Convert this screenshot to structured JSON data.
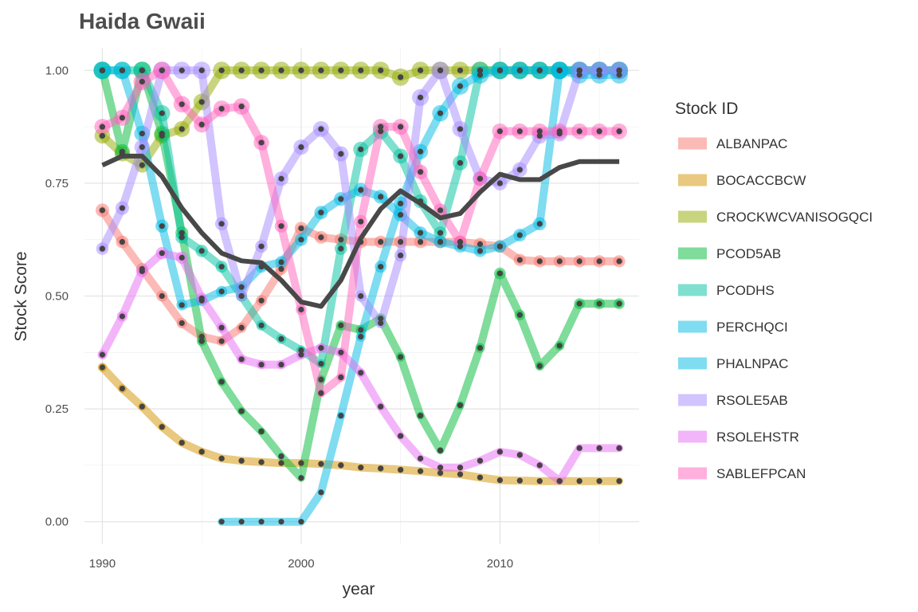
{
  "chart_data": {
    "type": "line",
    "title": "Haida Gwaii",
    "xlabel": "year",
    "ylabel": "Stock Score",
    "xlim": [
      1989.1,
      2017.0
    ],
    "ylim": [
      -0.05,
      1.05
    ],
    "x_ticks": [
      1990,
      2000,
      2010
    ],
    "x_tick_labels": [
      "1990",
      "2000",
      "2010"
    ],
    "y_ticks": [
      0,
      0.25,
      0.5,
      0.75,
      1
    ],
    "y_tick_labels": [
      "0.00",
      "0.25",
      "0.50",
      "0.75",
      "1.00"
    ],
    "grid": true,
    "legend_title": "Stock ID",
    "legend_position": "right",
    "series": [
      {
        "name": "ALBANPAC",
        "color": "#F8766D",
        "points": [
          [
            1990,
            0.69
          ],
          [
            1991,
            0.62
          ],
          [
            1992,
            0.56
          ],
          [
            1993,
            0.5
          ],
          [
            1994,
            0.44
          ],
          [
            1995,
            0.41
          ],
          [
            1996,
            0.4
          ],
          [
            1997,
            0.43
          ],
          [
            1998,
            0.49
          ],
          [
            1999,
            0.56
          ],
          [
            2000,
            0.65
          ],
          [
            2001,
            0.63
          ],
          [
            2002,
            0.625
          ],
          [
            2003,
            0.62
          ],
          [
            2004,
            0.62
          ],
          [
            2005,
            0.62
          ],
          [
            2006,
            0.62
          ],
          [
            2007,
            0.62
          ],
          [
            2008,
            0.62
          ],
          [
            2009,
            0.615
          ],
          [
            2010,
            0.61
          ],
          [
            2011,
            0.58
          ],
          [
            2012,
            0.577
          ],
          [
            2013,
            0.577
          ],
          [
            2014,
            0.577
          ],
          [
            2015,
            0.577
          ],
          [
            2016,
            0.577
          ]
        ]
      },
      {
        "name": "BOCACCBCW",
        "color": "#D39200",
        "points": [
          [
            1990,
            0.342
          ],
          [
            1991,
            0.295
          ],
          [
            1992,
            0.255
          ],
          [
            1993,
            0.21
          ],
          [
            1994,
            0.175
          ],
          [
            1995,
            0.155
          ],
          [
            1996,
            0.14
          ],
          [
            1997,
            0.135
          ],
          [
            1998,
            0.132
          ],
          [
            1999,
            0.13
          ],
          [
            2000,
            0.13
          ],
          [
            2001,
            0.128
          ],
          [
            2002,
            0.125
          ],
          [
            2003,
            0.12
          ],
          [
            2004,
            0.118
          ],
          [
            2005,
            0.115
          ],
          [
            2006,
            0.112
          ],
          [
            2007,
            0.108
          ],
          [
            2008,
            0.105
          ],
          [
            2009,
            0.098
          ],
          [
            2010,
            0.092
          ],
          [
            2011,
            0.091
          ],
          [
            2012,
            0.09
          ],
          [
            2013,
            0.09
          ],
          [
            2014,
            0.09
          ],
          [
            2015,
            0.09
          ],
          [
            2016,
            0.09
          ]
        ]
      },
      {
        "name": "CROCKWCVANISOGQCI",
        "color": "#93AA00",
        "points": [
          [
            1990,
            0.855
          ],
          [
            1991,
            0.815
          ],
          [
            1992,
            0.79
          ],
          [
            1993,
            0.855
          ],
          [
            1994,
            0.87
          ],
          [
            1995,
            0.93
          ],
          [
            1996,
            1.0
          ],
          [
            1997,
            1.0
          ],
          [
            1998,
            1.0
          ],
          [
            1999,
            1.0
          ],
          [
            2000,
            1.0
          ],
          [
            2001,
            1.0
          ],
          [
            2002,
            1.0
          ],
          [
            2003,
            1.0
          ],
          [
            2004,
            1.0
          ],
          [
            2005,
            0.985
          ],
          [
            2006,
            1.0
          ],
          [
            2007,
            1.0
          ],
          [
            2008,
            1.0
          ],
          [
            2009,
            1.0
          ],
          [
            2010,
            1.0
          ],
          [
            2011,
            1.0
          ],
          [
            2012,
            1.0
          ],
          [
            2013,
            1.0
          ],
          [
            2014,
            1.0
          ],
          [
            2015,
            1.0
          ],
          [
            2016,
            1.0
          ]
        ]
      },
      {
        "name": "PCOD5AB",
        "color": "#00BA38",
        "points": [
          [
            1990,
            1.0
          ],
          [
            1991,
            0.82
          ],
          [
            1992,
            1.0
          ],
          [
            1993,
            0.86
          ],
          [
            1994,
            0.64
          ],
          [
            1995,
            0.4
          ],
          [
            1996,
            0.31
          ],
          [
            1997,
            0.245
          ],
          [
            1998,
            0.2
          ],
          [
            1999,
            0.145
          ],
          [
            2000,
            0.097
          ],
          [
            2001,
            0.315
          ],
          [
            2002,
            0.435
          ],
          [
            2003,
            0.425
          ],
          [
            2004,
            0.45
          ],
          [
            2005,
            0.365
          ],
          [
            2006,
            0.235
          ],
          [
            2007,
            0.158
          ],
          [
            2008,
            0.258
          ],
          [
            2009,
            0.385
          ],
          [
            2010,
            0.55
          ],
          [
            2011,
            0.458
          ],
          [
            2012,
            0.345
          ],
          [
            2013,
            0.39
          ],
          [
            2014,
            0.483
          ],
          [
            2015,
            0.483
          ],
          [
            2016,
            0.483
          ]
        ]
      },
      {
        "name": "PCODHS",
        "color": "#00C19F",
        "points": [
          [
            1990,
            1.0
          ],
          [
            1991,
            1.0
          ],
          [
            1992,
            1.0
          ],
          [
            1993,
            0.905
          ],
          [
            1994,
            0.63
          ],
          [
            1995,
            0.6
          ],
          [
            1996,
            0.565
          ],
          [
            1997,
            0.5
          ],
          [
            1998,
            0.435
          ],
          [
            1999,
            0.405
          ],
          [
            2000,
            0.38
          ],
          [
            2001,
            0.35
          ],
          [
            2002,
            0.605
          ],
          [
            2003,
            0.825
          ],
          [
            2004,
            0.865
          ],
          [
            2005,
            0.81
          ],
          [
            2006,
            0.71
          ],
          [
            2007,
            0.64
          ],
          [
            2008,
            0.795
          ],
          [
            2009,
            1.0
          ],
          [
            2010,
            1.0
          ],
          [
            2011,
            1.0
          ],
          [
            2012,
            1.0
          ],
          [
            2013,
            1.0
          ],
          [
            2014,
            1.0
          ],
          [
            2015,
            1.0
          ],
          [
            2016,
            1.0
          ]
        ]
      },
      {
        "name": "PERCHQCI",
        "color": "#00B9E3",
        "points": [
          [
            1990,
            1.0
          ],
          [
            1991,
            1.0
          ],
          [
            1992,
            0.86
          ],
          [
            1993,
            0.655
          ],
          [
            1994,
            0.48
          ],
          [
            1995,
            0.49
          ],
          [
            1996,
            0.51
          ],
          [
            1997,
            0.52
          ],
          [
            1998,
            0.565
          ],
          [
            1999,
            0.575
          ],
          [
            2000,
            0.625
          ],
          [
            2001,
            0.685
          ],
          [
            2002,
            0.715
          ],
          [
            2003,
            0.735
          ],
          [
            2004,
            0.72
          ],
          [
            2005,
            0.68
          ],
          [
            2006,
            0.64
          ],
          [
            2007,
            0.62
          ],
          [
            2008,
            0.61
          ],
          [
            2009,
            0.6
          ],
          [
            2010,
            0.61
          ],
          [
            2011,
            0.635
          ],
          [
            2012,
            0.66
          ],
          [
            2013,
            1.0
          ],
          [
            2014,
            1.0
          ],
          [
            2015,
            1.0
          ],
          [
            2016,
            1.0
          ]
        ]
      },
      {
        "name": "PHALNPAC",
        "color": "#00B9E3",
        "points": [
          [
            1996,
            0.0
          ],
          [
            1997,
            0.0
          ],
          [
            1998,
            0.0
          ],
          [
            1999,
            0.0
          ],
          [
            2000,
            0.0
          ],
          [
            2001,
            0.065
          ],
          [
            2002,
            0.235
          ],
          [
            2003,
            0.41
          ],
          [
            2004,
            0.565
          ],
          [
            2005,
            0.705
          ],
          [
            2006,
            0.82
          ],
          [
            2007,
            0.905
          ],
          [
            2008,
            0.965
          ],
          [
            2009,
            0.99
          ],
          [
            2010,
            1.0
          ],
          [
            2011,
            1.0
          ],
          [
            2012,
            1.0
          ],
          [
            2013,
            1.0
          ],
          [
            2014,
            0.99
          ],
          [
            2015,
            0.99
          ],
          [
            2016,
            0.99
          ]
        ]
      },
      {
        "name": "RSOLE5AB",
        "color": "#A58AFF",
        "points": [
          [
            1990,
            0.605
          ],
          [
            1991,
            0.695
          ],
          [
            1992,
            0.83
          ],
          [
            1993,
            1.0
          ],
          [
            1994,
            1.0
          ],
          [
            1995,
            1.0
          ],
          [
            1996,
            0.66
          ],
          [
            1997,
            0.5
          ],
          [
            1998,
            0.61
          ],
          [
            1999,
            0.76
          ],
          [
            2000,
            0.83
          ],
          [
            2001,
            0.87
          ],
          [
            2002,
            0.815
          ],
          [
            2003,
            0.5
          ],
          [
            2004,
            0.44
          ],
          [
            2005,
            0.59
          ],
          [
            2006,
            0.94
          ],
          [
            2007,
            1.0
          ],
          [
            2008,
            0.87
          ],
          [
            2009,
            0.76
          ],
          [
            2010,
            0.75
          ],
          [
            2011,
            0.78
          ],
          [
            2012,
            0.855
          ],
          [
            2013,
            0.86
          ],
          [
            2014,
            1.0
          ],
          [
            2015,
            1.0
          ],
          [
            2016,
            1.0
          ]
        ]
      },
      {
        "name": "RSOLEHSTR",
        "color": "#E76BF3",
        "points": [
          [
            1990,
            0.37
          ],
          [
            1991,
            0.455
          ],
          [
            1992,
            0.555
          ],
          [
            1993,
            0.595
          ],
          [
            1994,
            0.585
          ],
          [
            1995,
            0.495
          ],
          [
            1996,
            0.43
          ],
          [
            1997,
            0.36
          ],
          [
            1998,
            0.348
          ],
          [
            1999,
            0.348
          ],
          [
            2000,
            0.37
          ],
          [
            2001,
            0.385
          ],
          [
            2002,
            0.375
          ],
          [
            2003,
            0.33
          ],
          [
            2004,
            0.255
          ],
          [
            2005,
            0.19
          ],
          [
            2006,
            0.14
          ],
          [
            2007,
            0.12
          ],
          [
            2008,
            0.12
          ],
          [
            2009,
            0.135
          ],
          [
            2010,
            0.155
          ],
          [
            2011,
            0.148
          ],
          [
            2012,
            0.125
          ],
          [
            2013,
            0.09
          ],
          [
            2014,
            0.163
          ],
          [
            2015,
            0.163
          ],
          [
            2016,
            0.163
          ]
        ]
      },
      {
        "name": "SABLEFPCAN",
        "color": "#FF62BC",
        "points": [
          [
            1990,
            0.875
          ],
          [
            1991,
            0.895
          ],
          [
            1992,
            0.975
          ],
          [
            1993,
            1.0
          ],
          [
            1994,
            0.925
          ],
          [
            1995,
            0.88
          ],
          [
            1996,
            0.915
          ],
          [
            1997,
            0.92
          ],
          [
            1998,
            0.84
          ],
          [
            1999,
            0.655
          ],
          [
            2000,
            0.47
          ],
          [
            2001,
            0.285
          ],
          [
            2002,
            0.32
          ],
          [
            2003,
            0.665
          ],
          [
            2004,
            0.875
          ],
          [
            2005,
            0.875
          ],
          [
            2006,
            0.775
          ],
          [
            2007,
            0.69
          ],
          [
            2008,
            0.62
          ],
          [
            2009,
            0.76
          ],
          [
            2010,
            0.865
          ],
          [
            2011,
            0.865
          ],
          [
            2012,
            0.865
          ],
          [
            2013,
            0.865
          ],
          [
            2014,
            0.865
          ],
          [
            2015,
            0.865
          ],
          [
            2016,
            0.865
          ]
        ]
      }
    ],
    "summary_series": {
      "color": "#484848",
      "points": [
        [
          1990,
          0.79
        ],
        [
          1991,
          0.81
        ],
        [
          1992,
          0.81
        ],
        [
          1993,
          0.765
        ],
        [
          1994,
          0.695
        ],
        [
          1995,
          0.64
        ],
        [
          1996,
          0.595
        ],
        [
          1997,
          0.578
        ],
        [
          1998,
          0.574
        ],
        [
          1999,
          0.535
        ],
        [
          2000,
          0.487
        ],
        [
          2001,
          0.477
        ],
        [
          2002,
          0.535
        ],
        [
          2003,
          0.628
        ],
        [
          2004,
          0.693
        ],
        [
          2005,
          0.733
        ],
        [
          2006,
          0.705
        ],
        [
          2007,
          0.673
        ],
        [
          2008,
          0.683
        ],
        [
          2009,
          0.73
        ],
        [
          2010,
          0.77
        ],
        [
          2011,
          0.758
        ],
        [
          2012,
          0.758
        ],
        [
          2013,
          0.785
        ],
        [
          2014,
          0.798
        ],
        [
          2015,
          0.798
        ],
        [
          2016,
          0.798
        ]
      ]
    }
  }
}
